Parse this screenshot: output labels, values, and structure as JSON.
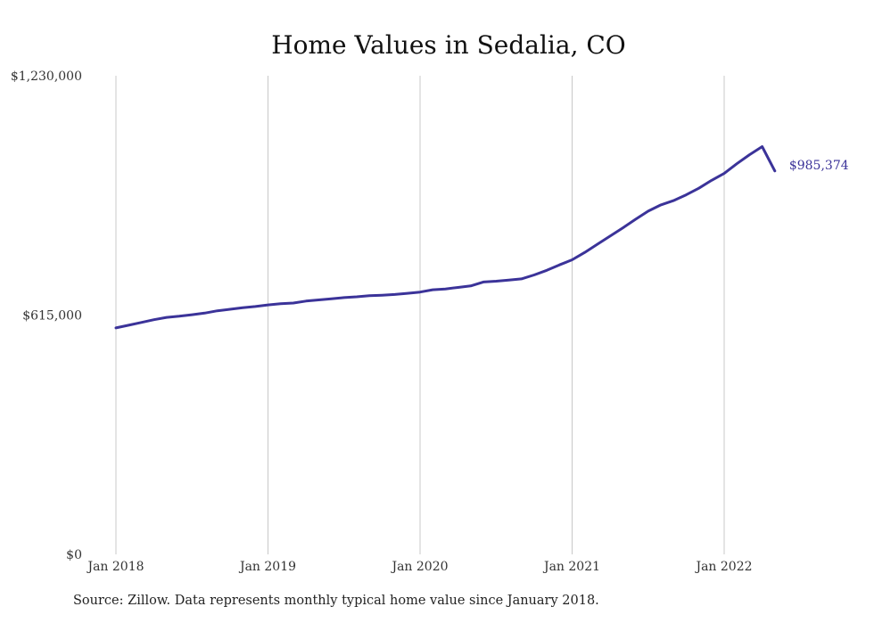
{
  "chart_data": {
    "type": "line",
    "title": "Home Values in Sedalia, CO",
    "xlabel": "",
    "ylabel": "",
    "ylim": [
      0,
      1230000
    ],
    "y_ticks": [
      "$0",
      "$615,000",
      "$1,230,000"
    ],
    "x_ticks": [
      "Jan 2018",
      "Jan 2019",
      "Jan 2020",
      "Jan 2021",
      "Jan 2022"
    ],
    "grid": "vertical",
    "end_label": "$985,374",
    "line_color": "#3b3399",
    "series": [
      {
        "x": [
          "2018-01",
          "2018-02",
          "2018-03",
          "2018-04",
          "2018-05",
          "2018-06",
          "2018-07",
          "2018-08",
          "2018-09",
          "2018-10",
          "2018-11",
          "2018-12",
          "2019-01",
          "2019-02",
          "2019-03",
          "2019-04",
          "2019-05",
          "2019-06",
          "2019-07",
          "2019-08",
          "2019-09",
          "2019-10",
          "2019-11",
          "2019-12",
          "2020-01",
          "2020-02",
          "2020-03",
          "2020-04",
          "2020-05",
          "2020-06",
          "2020-07",
          "2020-08",
          "2020-09",
          "2020-10",
          "2020-11",
          "2020-12",
          "2021-01",
          "2021-02",
          "2021-03",
          "2021-04",
          "2021-05",
          "2021-06",
          "2021-07",
          "2021-08",
          "2021-09",
          "2021-10",
          "2021-11",
          "2021-12",
          "2022-01",
          "2022-02",
          "2022-03",
          "2022-04",
          "2022-05"
        ],
        "values": [
          582000,
          589000,
          596000,
          603000,
          609000,
          612000,
          616000,
          620000,
          626000,
          630000,
          634000,
          637000,
          641000,
          644000,
          646000,
          651000,
          654000,
          657000,
          660000,
          662000,
          665000,
          666000,
          668000,
          671000,
          674000,
          680000,
          682000,
          686000,
          690000,
          700000,
          702000,
          705000,
          708000,
          718000,
          730000,
          744000,
          757000,
          776000,
          797000,
          818000,
          839000,
          861000,
          882000,
          898000,
          909000,
          924000,
          941000,
          961000,
          979000,
          1004000,
          1027000,
          1048000,
          985374
        ]
      }
    ]
  },
  "source_note": "Source: Zillow. Data represents monthly typical home value since January 2018."
}
